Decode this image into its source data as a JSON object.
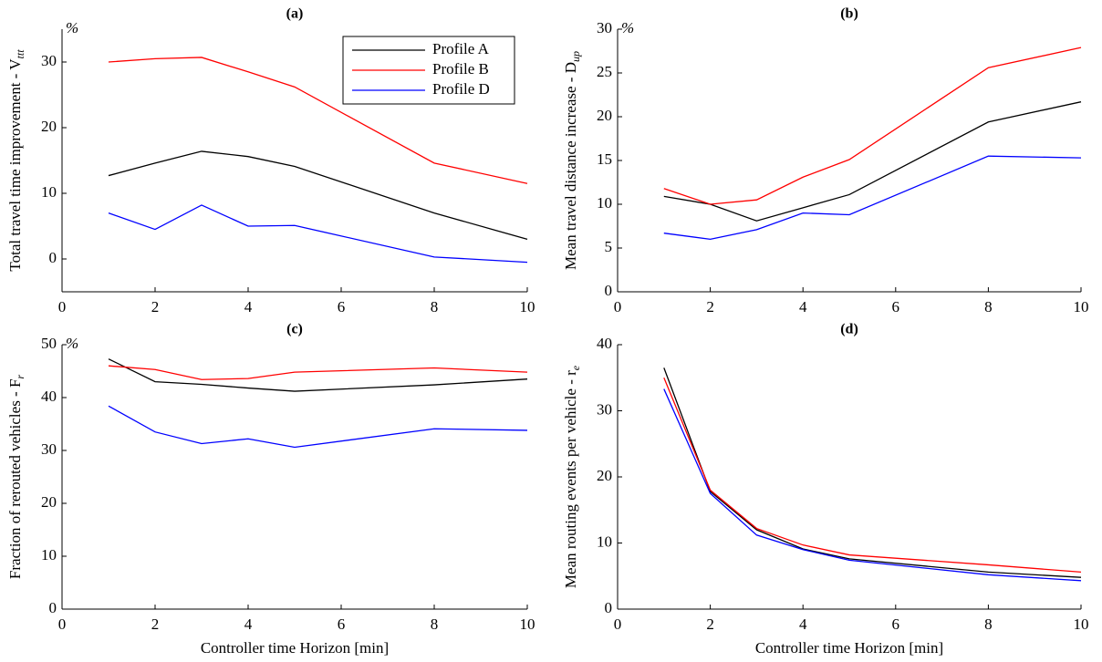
{
  "chart_data": [
    {
      "type": "line",
      "title": "(a)",
      "unit": "%",
      "ylabel": "Total travel time improvement - V",
      "ylabel_sub": "ttt",
      "x": [
        1,
        2,
        3,
        4,
        5,
        8,
        10
      ],
      "xlim": [
        0,
        10
      ],
      "xticks": [
        0,
        2,
        4,
        6,
        8,
        10
      ],
      "ylim": [
        -5,
        35
      ],
      "yticks": [
        0,
        10,
        20,
        30
      ],
      "legend": "upper right",
      "series": [
        {
          "name": "Profile A",
          "color": "#000000",
          "values": [
            12.7,
            14.6,
            16.4,
            15.6,
            14.1,
            7.0,
            3.0
          ]
        },
        {
          "name": "Profile B",
          "color": "#ff0000",
          "values": [
            30.0,
            30.5,
            30.7,
            28.5,
            26.2,
            14.6,
            11.5
          ]
        },
        {
          "name": "Profile D",
          "color": "#0000ff",
          "values": [
            7.0,
            4.5,
            8.2,
            5.0,
            5.1,
            0.3,
            -0.5
          ]
        }
      ]
    },
    {
      "type": "line",
      "title": "(b)",
      "unit": "%",
      "ylabel": "Mean travel distance increase - D",
      "ylabel_sub": "up",
      "x": [
        1,
        2,
        3,
        4,
        5,
        8,
        10
      ],
      "xlim": [
        0,
        10
      ],
      "xticks": [
        0,
        2,
        4,
        6,
        8,
        10
      ],
      "ylim": [
        0,
        30
      ],
      "yticks": [
        0,
        5,
        10,
        15,
        20,
        25,
        30
      ],
      "series": [
        {
          "color": "#000000",
          "values": [
            10.9,
            10.0,
            8.1,
            9.6,
            11.1,
            19.4,
            21.7
          ]
        },
        {
          "color": "#ff0000",
          "values": [
            11.8,
            10.0,
            10.5,
            13.1,
            15.1,
            25.6,
            27.9
          ]
        },
        {
          "color": "#0000ff",
          "values": [
            6.7,
            6.0,
            7.1,
            9.0,
            8.8,
            15.5,
            15.3
          ]
        }
      ]
    },
    {
      "type": "line",
      "title": "(c)",
      "unit": "%",
      "ylabel": "Fraction of rerouted vehicles - F",
      "ylabel_sub": "r",
      "xlabel": "Controller time Horizon [min]",
      "x": [
        1,
        2,
        3,
        4,
        5,
        8,
        10
      ],
      "xlim": [
        0,
        10
      ],
      "xticks": [
        0,
        2,
        4,
        6,
        8,
        10
      ],
      "ylim": [
        0,
        50
      ],
      "yticks": [
        0,
        10,
        20,
        30,
        40,
        50
      ],
      "series": [
        {
          "color": "#000000",
          "values": [
            47.3,
            43.0,
            42.5,
            41.8,
            41.2,
            42.4,
            43.5
          ]
        },
        {
          "color": "#ff0000",
          "values": [
            46.0,
            45.3,
            43.4,
            43.6,
            44.8,
            45.6,
            44.8
          ]
        },
        {
          "color": "#0000ff",
          "values": [
            38.4,
            33.5,
            31.3,
            32.2,
            30.6,
            34.1,
            33.8
          ]
        }
      ]
    },
    {
      "type": "line",
      "title": "(d)",
      "ylabel": "Mean routing events per vehicle - r",
      "ylabel_sub": "e",
      "xlabel": "Controller time Horizon [min]",
      "x": [
        1,
        2,
        3,
        4,
        5,
        8,
        10
      ],
      "xlim": [
        0,
        10
      ],
      "xticks": [
        0,
        2,
        4,
        6,
        8,
        10
      ],
      "ylim": [
        0,
        40
      ],
      "yticks": [
        0,
        10,
        20,
        30,
        40
      ],
      "series": [
        {
          "color": "#000000",
          "values": [
            36.5,
            17.8,
            12.0,
            9.1,
            7.6,
            5.6,
            4.8
          ]
        },
        {
          "color": "#ff0000",
          "values": [
            35.0,
            18.0,
            12.2,
            9.7,
            8.2,
            6.7,
            5.6
          ]
        },
        {
          "color": "#0000ff",
          "values": [
            33.3,
            17.5,
            11.2,
            9.0,
            7.4,
            5.2,
            4.3
          ]
        }
      ]
    }
  ]
}
